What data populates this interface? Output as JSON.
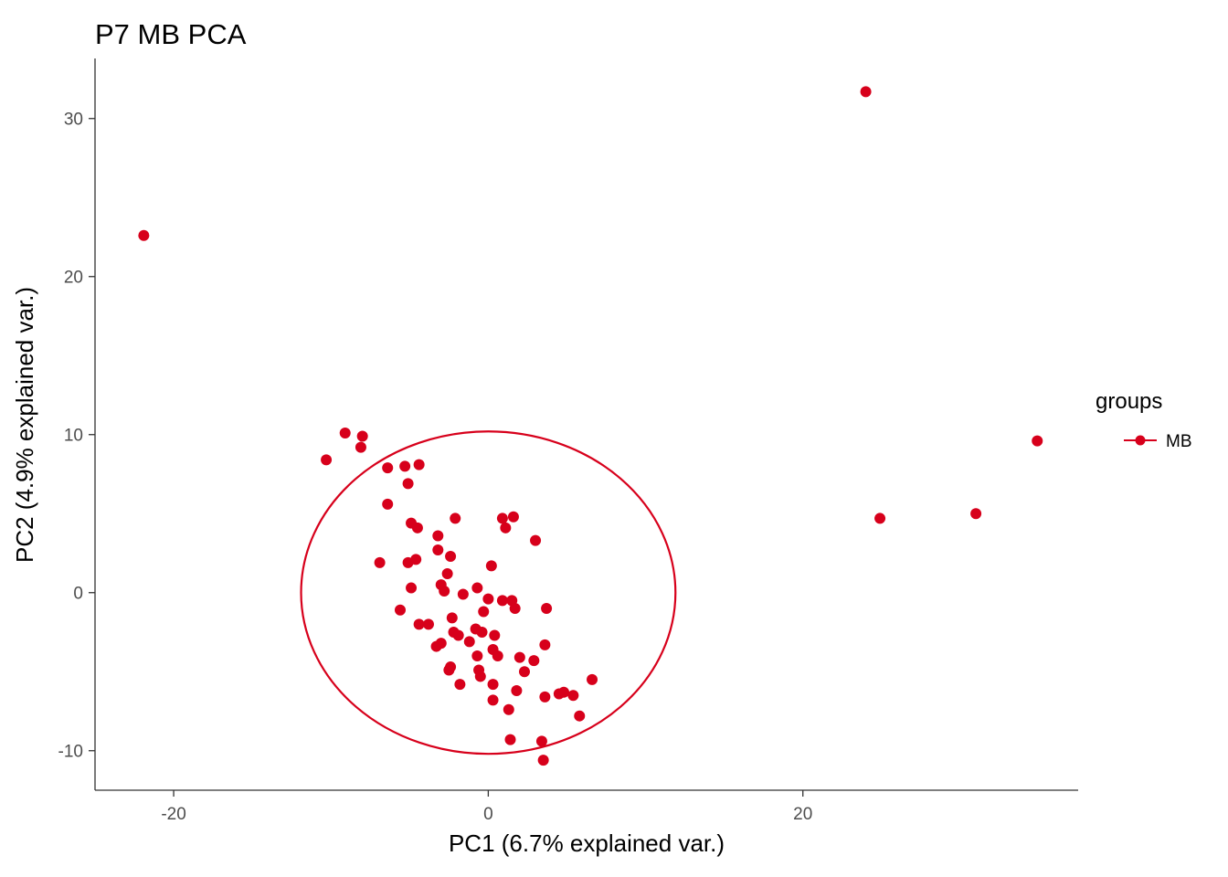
{
  "chart_data": {
    "type": "scatter",
    "title": "P7 MB PCA",
    "xlabel": "PC1 (6.7% explained var.)",
    "ylabel": "PC2 (4.9% explained var.)",
    "xlim": [
      -25,
      37.5
    ],
    "ylim": [
      -12.5,
      33.8
    ],
    "xticks": [
      -20,
      0,
      20
    ],
    "xtick_labels": [
      "-20",
      "0",
      "20"
    ],
    "yticks": [
      -10,
      0,
      10,
      20,
      30
    ],
    "ytick_labels": [
      "-10",
      "0",
      "10",
      "20",
      "30"
    ],
    "grid": false,
    "legend": {
      "title": "groups",
      "placement": "right",
      "entries": [
        "MB"
      ]
    },
    "series": [
      {
        "name": "MB",
        "color": "#d7001b",
        "ellipse": {
          "center": [
            0,
            0
          ],
          "rx": 11.9,
          "ry": 10.2
        },
        "points": [
          [
            -21.9,
            22.6
          ],
          [
            24.0,
            31.7
          ],
          [
            34.9,
            9.6
          ],
          [
            24.9,
            4.7
          ],
          [
            31.0,
            5.0
          ],
          [
            -9.1,
            10.1
          ],
          [
            -8.0,
            9.9
          ],
          [
            -8.1,
            9.2
          ],
          [
            -10.3,
            8.4
          ],
          [
            -6.4,
            7.9
          ],
          [
            -5.3,
            8.0
          ],
          [
            -4.4,
            8.1
          ],
          [
            -5.1,
            6.9
          ],
          [
            -6.4,
            5.6
          ],
          [
            -4.9,
            4.4
          ],
          [
            -4.5,
            4.1
          ],
          [
            -2.1,
            4.7
          ],
          [
            -3.2,
            3.6
          ],
          [
            -3.2,
            2.7
          ],
          [
            -2.4,
            2.3
          ],
          [
            -4.6,
            2.1
          ],
          [
            -5.1,
            1.9
          ],
          [
            -6.9,
            1.9
          ],
          [
            -2.6,
            1.2
          ],
          [
            -3.0,
            0.5
          ],
          [
            -2.8,
            0.1
          ],
          [
            -4.9,
            0.3
          ],
          [
            -1.6,
            -0.1
          ],
          [
            -0.7,
            0.3
          ],
          [
            0.2,
            1.7
          ],
          [
            0.9,
            4.7
          ],
          [
            1.6,
            4.8
          ],
          [
            1.1,
            4.1
          ],
          [
            3.0,
            3.3
          ],
          [
            0.0,
            -0.4
          ],
          [
            0.9,
            -0.5
          ],
          [
            1.5,
            -0.5
          ],
          [
            1.7,
            -1.0
          ],
          [
            3.7,
            -1.0
          ],
          [
            -0.3,
            -1.2
          ],
          [
            -5.6,
            -1.1
          ],
          [
            -2.3,
            -1.6
          ],
          [
            -4.4,
            -2.0
          ],
          [
            -3.8,
            -2.0
          ],
          [
            -2.2,
            -2.5
          ],
          [
            -1.9,
            -2.7
          ],
          [
            -0.8,
            -2.3
          ],
          [
            -0.4,
            -2.5
          ],
          [
            0.4,
            -2.7
          ],
          [
            -1.2,
            -3.1
          ],
          [
            -3.0,
            -3.2
          ],
          [
            -3.3,
            -3.4
          ],
          [
            -0.7,
            -4.0
          ],
          [
            0.3,
            -3.6
          ],
          [
            0.6,
            -4.0
          ],
          [
            2.0,
            -4.1
          ],
          [
            2.9,
            -4.3
          ],
          [
            3.6,
            -3.3
          ],
          [
            -2.4,
            -4.7
          ],
          [
            -2.5,
            -4.9
          ],
          [
            -0.6,
            -4.9
          ],
          [
            -0.5,
            -5.3
          ],
          [
            2.3,
            -5.0
          ],
          [
            -1.8,
            -5.8
          ],
          [
            0.3,
            -5.8
          ],
          [
            1.8,
            -6.2
          ],
          [
            4.5,
            -6.4
          ],
          [
            4.8,
            -6.3
          ],
          [
            5.4,
            -6.5
          ],
          [
            6.6,
            -5.5
          ],
          [
            3.6,
            -6.6
          ],
          [
            0.3,
            -6.8
          ],
          [
            1.3,
            -7.4
          ],
          [
            5.8,
            -7.8
          ],
          [
            1.4,
            -9.3
          ],
          [
            3.4,
            -9.4
          ],
          [
            3.5,
            -10.6
          ]
        ]
      }
    ]
  }
}
